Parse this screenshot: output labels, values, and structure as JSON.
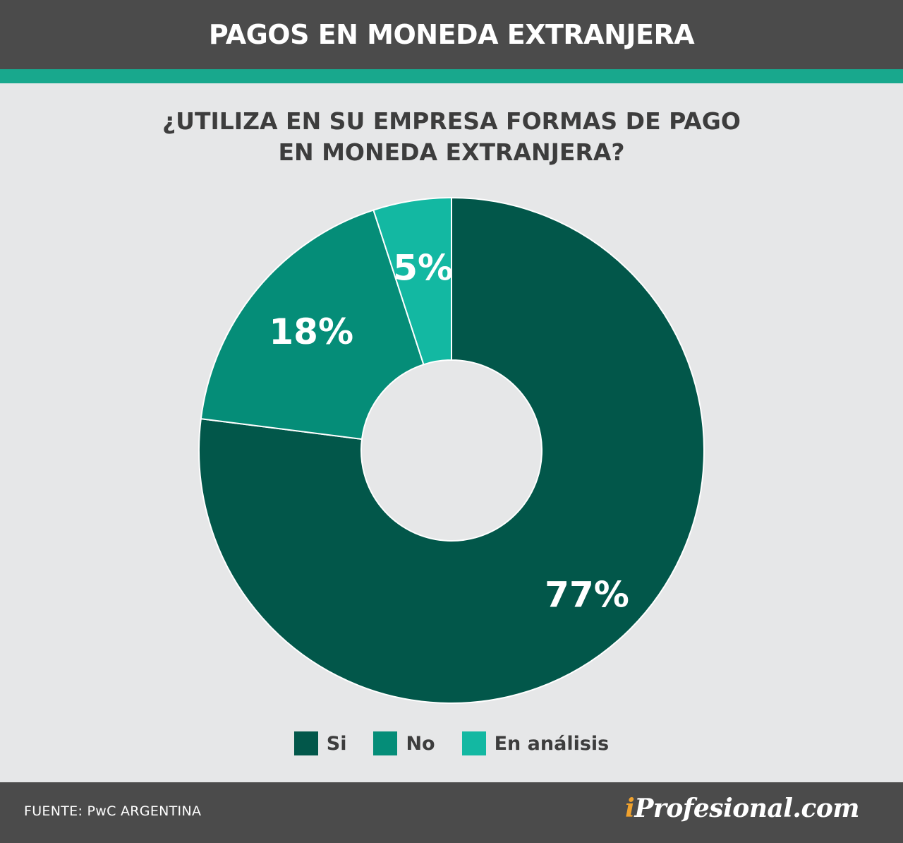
{
  "header": {
    "title": "PAGOS EN MONEDA EXTRANJERA"
  },
  "colors": {
    "header_bg": "#4b4b4b",
    "accent": "#18a88d",
    "background": "#e6e7e8"
  },
  "chart_data": {
    "type": "pie",
    "title_lines": [
      "¿UTILIZA EN SU EMPRESA FORMAS DE PAGO",
      "EN MONEDA EXTRANJERA?"
    ],
    "categories": [
      "Si",
      "No",
      "En análisis"
    ],
    "values": [
      77,
      18,
      5
    ],
    "labels": [
      "77%",
      "18%",
      "5%"
    ],
    "colors": [
      "#02574a",
      "#058d78",
      "#13b8a2"
    ],
    "donut": true,
    "legend_position": "bottom"
  },
  "footer": {
    "source": "FUENTE: PwC ARGENTINA",
    "brand_prefix": "i",
    "brand_rest": "Profesional.com"
  }
}
